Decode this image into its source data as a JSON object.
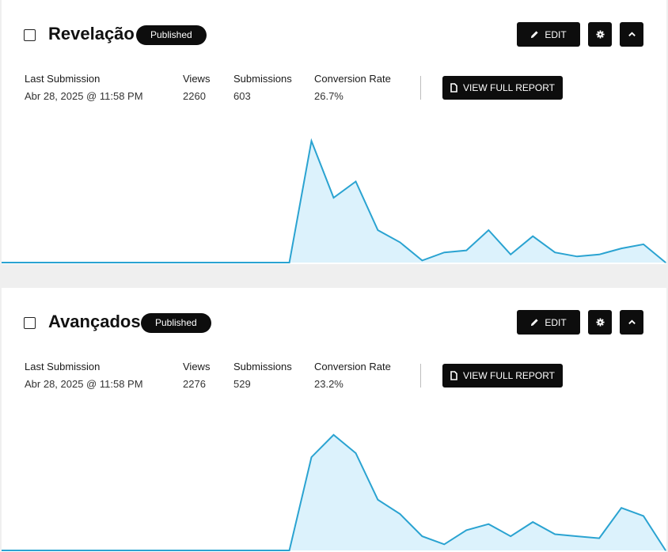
{
  "colors": {
    "button_bg": "#0d0d0d",
    "line": "#2aa3d1",
    "fill": "#dcf2fc",
    "page_bg": "#efefef"
  },
  "forms": [
    {
      "title": "Revelação",
      "status": "Published",
      "edit_label": "EDIT",
      "report_label": "VIEW FULL REPORT",
      "stats": {
        "last_submission_label": "Last Submission",
        "last_submission_value": "Abr 28, 2025 @ 11:58 PM",
        "views_label": "Views",
        "views_value": "2260",
        "submissions_label": "Submissions",
        "submissions_value": "603",
        "conversion_label": "Conversion Rate",
        "conversion_value": "26.7%"
      },
      "icons": [
        "pencil-icon",
        "gear-icon",
        "chevron-up-icon",
        "document-icon"
      ],
      "chart_data": {
        "type": "area",
        "values": [
          0,
          0,
          0,
          0,
          0,
          0,
          0,
          0,
          0,
          0,
          0,
          0,
          0,
          0,
          60,
          32,
          40,
          16,
          10,
          1,
          5,
          6,
          16,
          4,
          13,
          5,
          3,
          4,
          7,
          9,
          0
        ],
        "ylim": [
          0,
          64
        ]
      }
    },
    {
      "title": "Avançados",
      "status": "Published",
      "edit_label": "EDIT",
      "report_label": "VIEW FULL REPORT",
      "stats": {
        "last_submission_label": "Last Submission",
        "last_submission_value": "Abr 28, 2025 @ 11:58 PM",
        "views_label": "Views",
        "views_value": "2276",
        "submissions_label": "Submissions",
        "submissions_value": "529",
        "conversion_label": "Conversion Rate",
        "conversion_value": "23.2%"
      },
      "icons": [
        "pencil-icon",
        "gear-icon",
        "chevron-up-icon",
        "document-icon"
      ],
      "chart_data": {
        "type": "area",
        "values": [
          0,
          0,
          0,
          0,
          0,
          0,
          0,
          0,
          0,
          0,
          0,
          0,
          0,
          0,
          46,
          57,
          48,
          25,
          18,
          7,
          3,
          10,
          13,
          7,
          14,
          8,
          7,
          6,
          21,
          17,
          0
        ],
        "ylim": [
          0,
          64
        ]
      }
    }
  ]
}
